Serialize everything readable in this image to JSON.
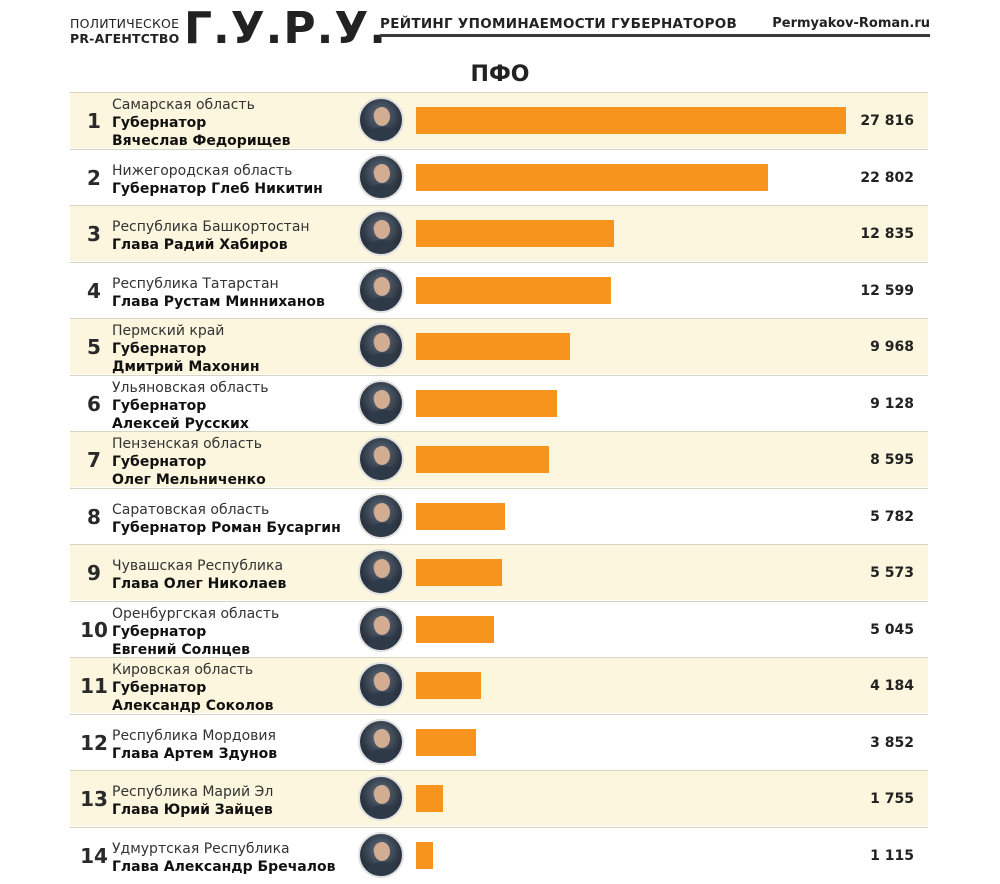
{
  "header": {
    "agency_line1": "ПОЛИТИЧЕСКОЕ",
    "agency_line2": "PR-АГЕНТСТВО",
    "logo": "Г.У.Р.У.",
    "subtitle": "РЕЙТИНГ УПОМИНАЕМОСТИ ГУБЕРНАТОРОВ",
    "site": "Permyakov-Roman.ru"
  },
  "colors": {
    "bar": "#f7941d",
    "row_alt": "#fbf6dd"
  },
  "chart_data": {
    "type": "bar",
    "orientation": "horizontal",
    "title": "ПФО",
    "xlim": [
      0,
      27816
    ],
    "items": [
      {
        "rank": "1",
        "region": "Самарская область",
        "gov_line1": "Губернатор",
        "gov_line2": "Вячеслав Федорищев",
        "value": 27816,
        "value_label": "27 816"
      },
      {
        "rank": "2",
        "region": "Нижегородская область",
        "gov_line1": "Губернатор Глеб Никитин",
        "gov_line2": "",
        "value": 22802,
        "value_label": "22 802"
      },
      {
        "rank": "3",
        "region": "Республика Башкортостан",
        "gov_line1": "Глава Радий Хабиров",
        "gov_line2": "",
        "value": 12835,
        "value_label": "12 835"
      },
      {
        "rank": "4",
        "region": "Республика Татарстан",
        "gov_line1": "Глава Рустам Минниханов",
        "gov_line2": "",
        "value": 12599,
        "value_label": "12 599"
      },
      {
        "rank": "5",
        "region": "Пермский край",
        "gov_line1": "Губернатор",
        "gov_line2": "Дмитрий Махонин",
        "value": 9968,
        "value_label": "9 968"
      },
      {
        "rank": "6",
        "region": "Ульяновская область",
        "gov_line1": "Губернатор",
        "gov_line2": "Алексей Русских",
        "value": 9128,
        "value_label": "9 128"
      },
      {
        "rank": "7",
        "region": "Пензенская область",
        "gov_line1": "Губернатор",
        "gov_line2": "Олег Мельниченко",
        "value": 8595,
        "value_label": "8 595"
      },
      {
        "rank": "8",
        "region": "Саратовская область",
        "gov_line1": "Губернатор Роман Бусаргин",
        "gov_line2": "",
        "value": 5782,
        "value_label": "5 782"
      },
      {
        "rank": "9",
        "region": "Чувашская Республика",
        "gov_line1": "Глава Олег Николаев",
        "gov_line2": "",
        "value": 5573,
        "value_label": "5 573"
      },
      {
        "rank": "10",
        "region": "Оренбургская область",
        "gov_line1": "Губернатор",
        "gov_line2": "Евгений Солнцев",
        "value": 5045,
        "value_label": "5 045"
      },
      {
        "rank": "11",
        "region": "Кировская область",
        "gov_line1": "Губернатор",
        "gov_line2": "Александр Соколов",
        "value": 4184,
        "value_label": "4 184"
      },
      {
        "rank": "12",
        "region": "Республика Мордовия",
        "gov_line1": "Глава Артем Здунов",
        "gov_line2": "",
        "value": 3852,
        "value_label": "3 852"
      },
      {
        "rank": "13",
        "region": "Республика Марий Эл",
        "gov_line1": "Глава Юрий Зайцев",
        "gov_line2": "",
        "value": 1755,
        "value_label": "1 755"
      },
      {
        "rank": "14",
        "region": "Удмуртская Республика",
        "gov_line1": "Глава Александр Бречалов",
        "gov_line2": "",
        "value": 1115,
        "value_label": "1 115"
      }
    ]
  }
}
